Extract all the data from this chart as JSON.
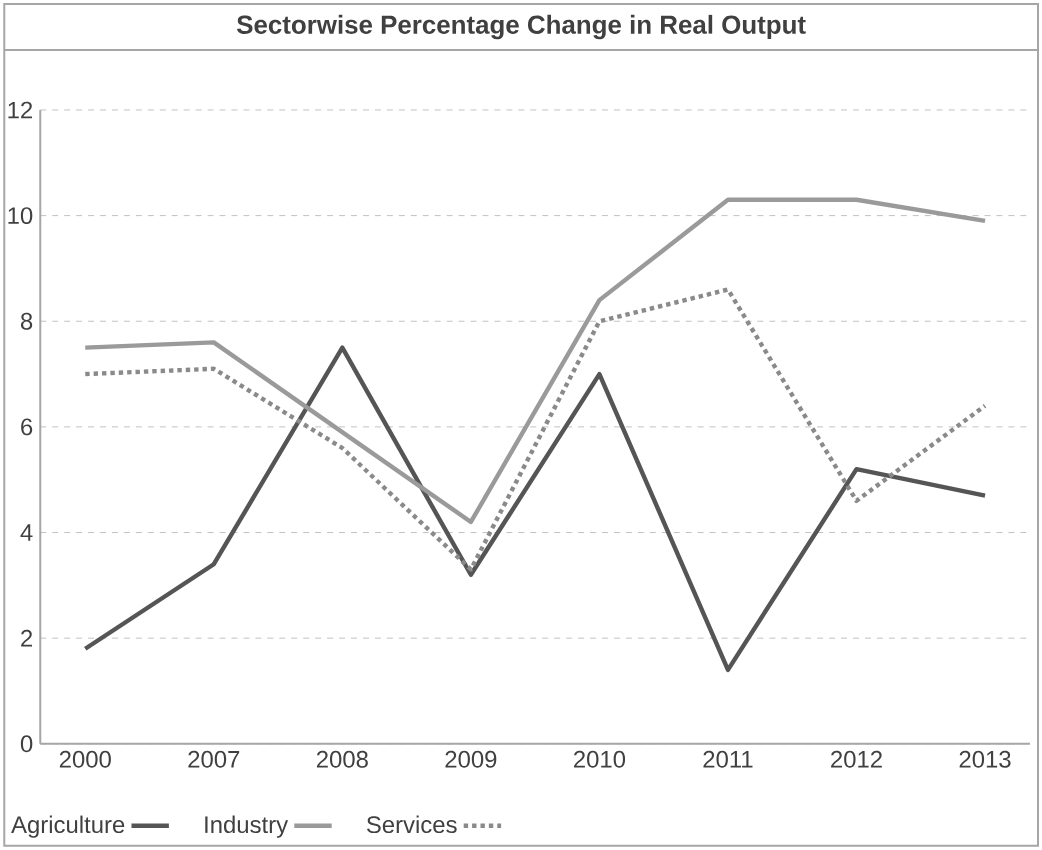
{
  "chart_data": {
    "type": "line",
    "title": "Sectorwise Percentage Change in Real Output",
    "categories": [
      "2000",
      "2007",
      "2008",
      "2009",
      "2010",
      "2011",
      "2012",
      "2013"
    ],
    "series": [
      {
        "name": "Agriculture",
        "color": "#555555",
        "line_style": "solid",
        "values": [
          1.8,
          3.4,
          7.5,
          3.2,
          7.0,
          1.4,
          5.2,
          4.7
        ]
      },
      {
        "name": "Industry",
        "color": "#9a9a9a",
        "line_style": "solid",
        "values": [
          7.5,
          7.6,
          5.9,
          4.2,
          8.4,
          10.3,
          10.3,
          9.9
        ]
      },
      {
        "name": "Services",
        "color": "#8a8a8a",
        "line_style": "dotted",
        "values": [
          7.0,
          7.1,
          5.6,
          3.3,
          8.0,
          8.6,
          4.6,
          6.4
        ]
      }
    ],
    "ylim": [
      0,
      12
    ],
    "yticks": [
      0,
      2,
      4,
      6,
      8,
      10,
      12
    ],
    "grid": "y",
    "legend": "bottom",
    "marker": "none"
  }
}
